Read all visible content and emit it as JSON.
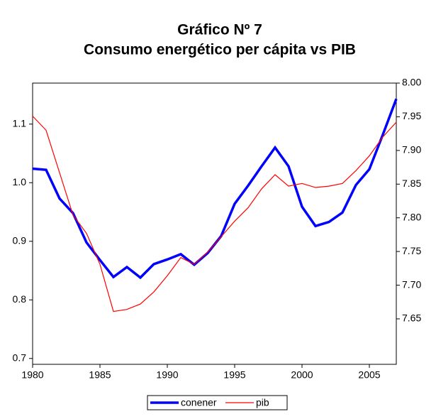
{
  "chart_data": {
    "type": "line",
    "title": "Gráfico Nº 7",
    "subtitle": "Consumo energético per cápita vs PIB",
    "x": [
      1980,
      1981,
      1982,
      1983,
      1984,
      1985,
      1986,
      1987,
      1988,
      1989,
      1990,
      1991,
      1992,
      1993,
      1994,
      1995,
      1996,
      1997,
      1998,
      1999,
      2000,
      2001,
      2002,
      2003,
      2004,
      2005,
      2006,
      2007
    ],
    "xlim": [
      1980,
      2007
    ],
    "xticks": [
      1980,
      1985,
      1990,
      1995,
      2000,
      2005
    ],
    "ylim": [
      0.69,
      1.17
    ],
    "yticks": [
      0.7,
      0.8,
      0.9,
      {
        "value": 1.0,
        "label": "1.0"
      },
      1.1
    ],
    "y2lim": [
      7.5825,
      8.0
    ],
    "y2ticks": [
      7.65,
      {
        "value": 7.7,
        "label": "7.70"
      },
      7.75,
      {
        "value": 7.8,
        "label": "7.80"
      },
      7.85,
      {
        "value": 7.9,
        "label": "7.90"
      },
      7.95,
      {
        "value": 8.0,
        "label": "8.00"
      }
    ],
    "legend": "bottom",
    "series": [
      {
        "name": "conener",
        "color": "#0000ff",
        "values": [
          1.024,
          1.022,
          0.973,
          0.948,
          0.898,
          0.868,
          0.839,
          0.856,
          0.838,
          0.861,
          0.869,
          0.878,
          0.86,
          0.88,
          0.909,
          0.964,
          0.995,
          1.028,
          1.06,
          1.028,
          0.959,
          0.926,
          0.933,
          0.949,
          0.996,
          1.023,
          1.082,
          1.143
        ]
      },
      {
        "name": "pib",
        "color": "#ff0000",
        "axis": "y2",
        "values": [
          7.951,
          7.93,
          7.867,
          7.804,
          7.777,
          7.731,
          7.661,
          7.664,
          7.672,
          7.69,
          7.714,
          7.741,
          7.731,
          7.749,
          7.772,
          7.795,
          7.815,
          7.843,
          7.864,
          7.847,
          7.851,
          7.845,
          7.847,
          7.851,
          7.87,
          7.892,
          7.92,
          7.942
        ]
      }
    ]
  }
}
